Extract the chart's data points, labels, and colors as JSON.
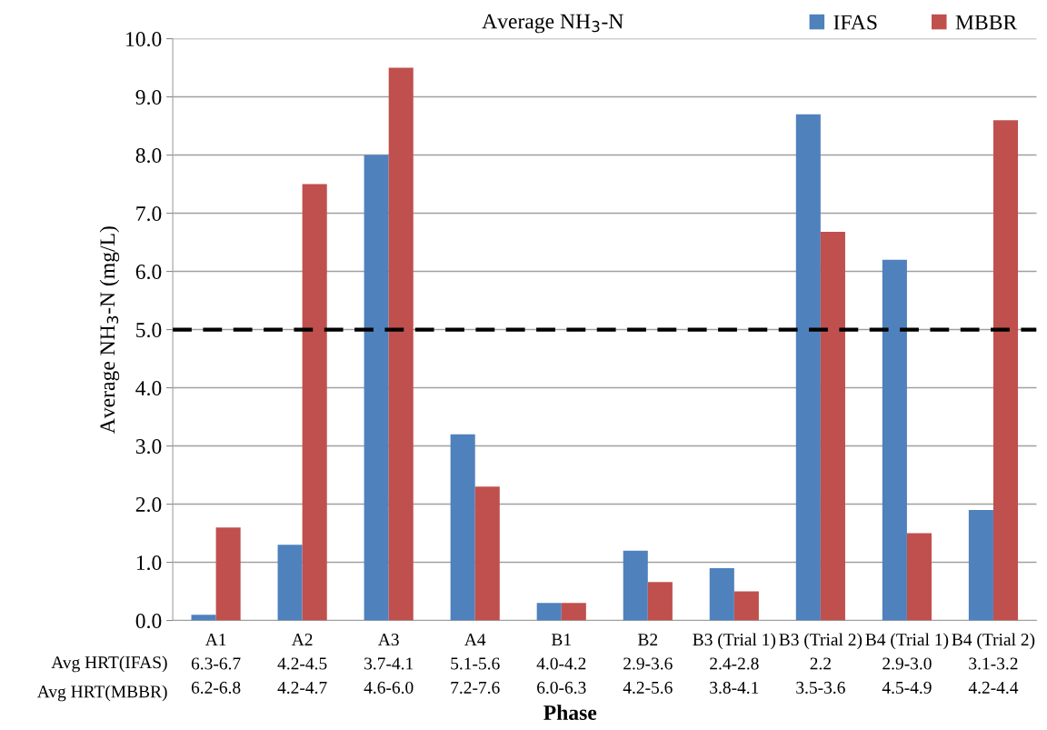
{
  "chart_data": {
    "type": "bar",
    "title": "Average NH$_{3}$-N",
    "ylabel": "Average NH$_{3}$-N (mg/L)",
    "xlabel": "Phase",
    "categories": [
      "A1\n6.3-6.7\n6.2-6.8",
      "A2\n4.2-4.5\n4.2-4.7",
      "A3\n3.7-4.1\n4.6-6.0",
      "A4\n5.1-5.6\n7.2-7.6",
      "B1\n4.0-4.2\n6.0-6.3",
      "B2\n2.9-3.6\n4.2-5.6",
      "B3 (Trial 1)\n2.4-2.8\n3.8-4.1",
      "B3 (Trial 2)\n2.2\n3.5-3.6",
      "B4 (Trial 1)\n2.9-3.0\n4.5-4.9",
      "B4 (Trial 2)\n3.1-3.2\n4.2-4.4"
    ],
    "series": [
      {
        "name": "IFAS",
        "color": "#4f81bd",
        "values": [
          0.1,
          1.3,
          8.0,
          3.2,
          0.3,
          1.2,
          0.9,
          8.7,
          6.2,
          1.9
        ]
      },
      {
        "name": "MBBR",
        "color": "#c0504d",
        "values": [
          1.6,
          7.5,
          9.5,
          2.3,
          0.3,
          0.66,
          0.5,
          6.68,
          1.5,
          8.6
        ]
      }
    ],
    "ylim": [
      0,
      10
    ],
    "yticks": [
      {
        "value": 0,
        "label": "0.0"
      },
      {
        "value": 1,
        "label": "1.0"
      },
      {
        "value": 2,
        "label": "2.0"
      },
      {
        "value": 3,
        "label": "3.0"
      },
      {
        "value": 4,
        "label": "4.0"
      },
      {
        "value": 5,
        "label": "5.0"
      },
      {
        "value": 6,
        "label": "6.0"
      },
      {
        "value": 7,
        "label": "7.0"
      },
      {
        "value": 8,
        "label": "8.0"
      },
      {
        "value": 9,
        "label": "9.0"
      },
      {
        "value": 10,
        "label": "10.0"
      }
    ],
    "ref_lines": [
      {
        "axis": "y",
        "value": 5,
        "color": "#000000",
        "line_style": "dashed"
      }
    ],
    "annotations": [
      "Avg HRT(IFAS)",
      "Avg HRT(MBBR)"
    ],
    "grid": "y",
    "legend": "top right"
  }
}
